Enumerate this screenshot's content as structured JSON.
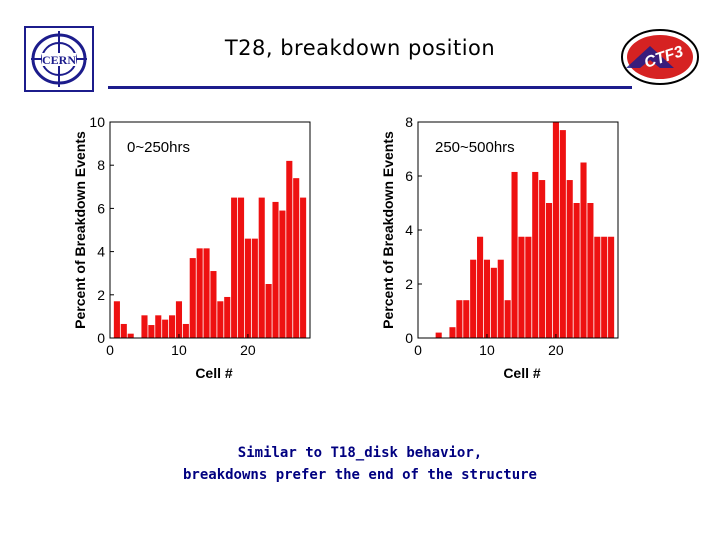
{
  "header": {
    "title": "T28, breakdown position",
    "logo_left_text": "CERN",
    "logo_right_text": "CTF3"
  },
  "colors": {
    "bar": "#ee1111",
    "rule": "#1c1c8c",
    "caption": "#000080"
  },
  "chart_data": [
    {
      "type": "bar",
      "title": "0~250hrs",
      "xlabel": "Cell #",
      "ylabel": "Percent of Breakdown Events",
      "x": [
        1,
        2,
        3,
        4,
        5,
        6,
        7,
        8,
        9,
        10,
        11,
        12,
        13,
        14,
        15,
        16,
        17,
        18,
        19,
        20,
        21,
        22,
        23,
        24,
        25,
        26,
        27,
        28
      ],
      "values": [
        1.7,
        0.65,
        0.2,
        0,
        1.05,
        0.6,
        1.05,
        0.85,
        1.05,
        1.7,
        0.65,
        3.7,
        4.15,
        4.15,
        3.1,
        1.7,
        1.9,
        6.5,
        6.5,
        4.6,
        4.6,
        6.5,
        2.5,
        6.3,
        5.9,
        8.2,
        7.4,
        6.5
      ],
      "xticks": [
        0,
        10,
        20
      ],
      "yticks": [
        0,
        2,
        4,
        6,
        8,
        10
      ],
      "xlim": [
        0,
        29
      ],
      "ylim": [
        0,
        10
      ]
    },
    {
      "type": "bar",
      "title": "250~500hrs",
      "xlabel": "Cell #",
      "ylabel": "Percent of Breakdown Events",
      "x": [
        1,
        2,
        3,
        4,
        5,
        6,
        7,
        8,
        9,
        10,
        11,
        12,
        13,
        14,
        15,
        16,
        17,
        18,
        19,
        20,
        21,
        22,
        23,
        24,
        25,
        26,
        27,
        28
      ],
      "values": [
        0,
        0,
        0.2,
        0,
        0.4,
        1.4,
        1.4,
        2.9,
        3.75,
        2.9,
        2.6,
        2.9,
        1.4,
        6.15,
        3.75,
        3.75,
        6.15,
        5.85,
        5.0,
        8.0,
        7.7,
        5.85,
        5.0,
        6.5,
        5.0,
        3.75,
        3.75,
        3.75
      ],
      "xticks": [
        0,
        10,
        20
      ],
      "yticks": [
        0,
        2,
        4,
        6,
        8
      ],
      "xlim": [
        0,
        29
      ],
      "ylim": [
        0,
        8
      ]
    }
  ],
  "caption": {
    "line1": "Similar to T18_disk behavior,",
    "line2": "breakdowns prefer the end of the structure"
  }
}
